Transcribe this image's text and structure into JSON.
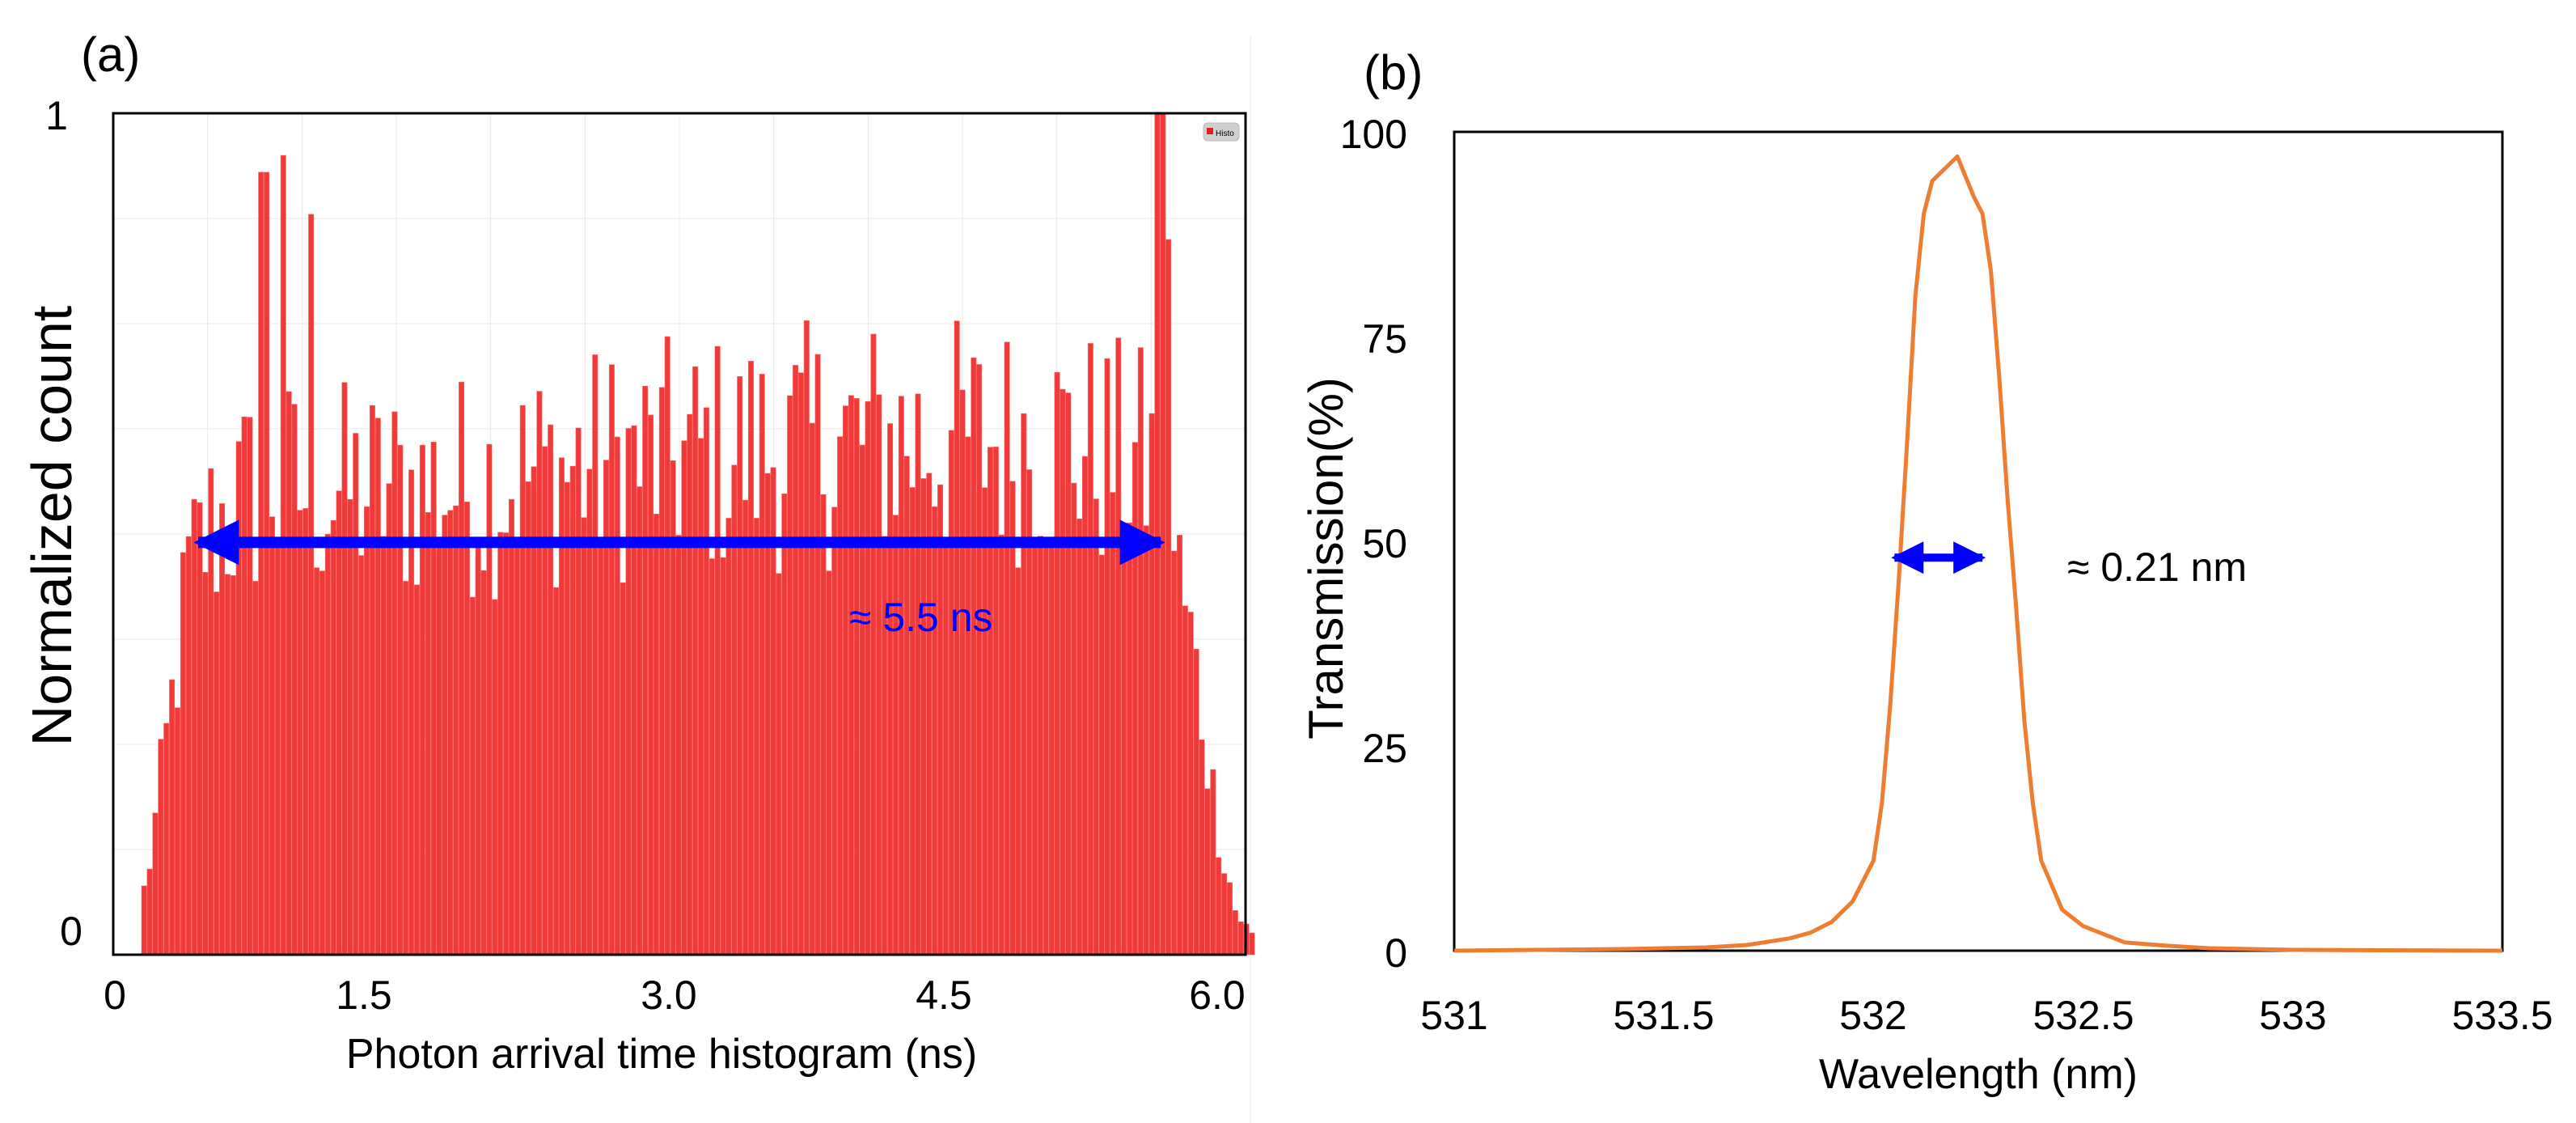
{
  "figure": {
    "panel_a_label": "(a)",
    "panel_b_label": "(b)"
  },
  "chart_data": [
    {
      "type": "bar",
      "panel": "(a)",
      "title": "",
      "xlabel": "Photon arrival time histogram (ns)",
      "ylabel": "Normalized count",
      "xlim": [
        0,
        6.0
      ],
      "ylim": [
        0,
        1
      ],
      "x_ticks": [
        "0",
        "1.5",
        "3.0",
        "4.5",
        "6.0"
      ],
      "x_tick_values": [
        0,
        1.5,
        3.0,
        4.5,
        6.0
      ],
      "y_ticks": [
        "0",
        "1"
      ],
      "y_tick_values": [
        0,
        1
      ],
      "legend": "top-right",
      "legend_label": "Histo",
      "bar_color": "#f03a3a",
      "bar_outline_color": "#ff6b6b",
      "grid": true,
      "series": [
        {
          "name": "Histo",
          "x_start": 0.15,
          "x_end": 6.05,
          "bin_count": 200,
          "envelope_x": [
            0.12,
            0.2,
            0.3,
            0.4,
            0.5,
            0.8,
            1.0,
            1.5,
            2.0,
            2.5,
            3.0,
            3.5,
            4.0,
            4.5,
            5.0,
            5.5,
            5.65,
            5.75,
            5.85,
            5.95,
            6.05
          ],
          "envelope_y": [
            0.02,
            0.12,
            0.28,
            0.45,
            0.5,
            0.56,
            0.55,
            0.55,
            0.56,
            0.58,
            0.59,
            0.6,
            0.61,
            0.61,
            0.61,
            0.58,
            0.45,
            0.32,
            0.16,
            0.05,
            0.02
          ],
          "peaks_x": [
            0.8,
            0.9,
            1.05,
            5.55,
            5.6
          ],
          "peaks_y": [
            0.93,
            0.95,
            0.88,
            1.0,
            0.85
          ]
        }
      ],
      "annotations": [
        {
          "text": "≈ 5.5 ns",
          "x_from": 0.45,
          "x_to": 5.55,
          "y": 0.49,
          "color": "#0000ff"
        }
      ]
    },
    {
      "type": "line",
      "panel": "(b)",
      "title": "",
      "xlabel": "Wavelength (nm)",
      "ylabel": "Transmission(%)",
      "xlim": [
        531,
        533.5
      ],
      "ylim": [
        0,
        100
      ],
      "x_ticks": [
        "531",
        "531.5",
        "532",
        "532.5",
        "533",
        "533.5"
      ],
      "x_tick_values": [
        531,
        531.5,
        532,
        532.5,
        533,
        533.5
      ],
      "y_ticks": [
        "0",
        "25",
        "50",
        "75",
        "100"
      ],
      "y_tick_values": [
        0,
        25,
        50,
        75,
        100
      ],
      "grid": false,
      "line_color": "#ed7d31",
      "series": [
        {
          "name": "Transmission",
          "x": [
            531.0,
            531.2,
            531.4,
            531.5,
            531.6,
            531.7,
            531.8,
            531.85,
            531.9,
            531.95,
            532.0,
            532.02,
            532.04,
            532.06,
            532.08,
            532.1,
            532.12,
            532.14,
            532.16,
            532.18,
            532.2,
            532.22,
            532.24,
            532.26,
            532.28,
            532.3,
            532.32,
            532.34,
            532.36,
            532.38,
            532.4,
            532.45,
            532.5,
            532.55,
            532.6,
            532.7,
            532.8,
            532.9,
            533.0,
            533.2,
            533.5
          ],
          "y": [
            0,
            0.1,
            0.2,
            0.3,
            0.4,
            0.7,
            1.5,
            2.2,
            3.5,
            6.0,
            11.0,
            18.0,
            30.0,
            45.0,
            62.0,
            80.0,
            90.0,
            94.0,
            95.0,
            96.0,
            97.0,
            94.5,
            92.0,
            90.0,
            83.0,
            70.0,
            55.0,
            42.0,
            28.0,
            18.0,
            11.0,
            5.0,
            3.0,
            2.0,
            1.0,
            0.6,
            0.3,
            0.2,
            0.1,
            0.05,
            0
          ]
        }
      ],
      "annotations": [
        {
          "text": "≈ 0.21 nm",
          "x_from": 532.05,
          "x_to": 532.26,
          "y": 48,
          "color": "#0000ff"
        }
      ]
    }
  ]
}
